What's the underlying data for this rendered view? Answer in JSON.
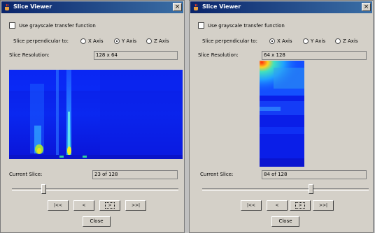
{
  "windows": [
    {
      "title": "Slice Viewer",
      "close_label": "×",
      "grayscale_label": "Use grayscale transfer function",
      "perpendicular_label": "Slice perpendicular to:",
      "axes": [
        "X Axis",
        "Y Axis",
        "Z Axis"
      ],
      "selected_axis": "Y Axis",
      "resolution_label": "Slice Resolution:",
      "resolution_value": "128 x 64",
      "current_slice_label": "Current Slice:",
      "current_slice_value": "23 of 128",
      "slider_fraction": 0.18,
      "nav_buttons": [
        "|<<",
        "<",
        ">",
        ">>|"
      ],
      "close_button": "Close"
    },
    {
      "title": "Slice Viewer",
      "close_label": "×",
      "grayscale_label": "Use grayscale transfer function",
      "perpendicular_label": "Slice perpendicular to:",
      "axes": [
        "X Axis",
        "Y Axis",
        "Z Axis"
      ],
      "selected_axis": "X Axis",
      "resolution_label": "Slice Resolution:",
      "resolution_value": "64 x 128",
      "current_slice_label": "Current Slice:",
      "current_slice_value": "84 of 128",
      "slider_fraction": 0.66,
      "nav_buttons": [
        "|<<",
        "<",
        ">",
        ">>|"
      ],
      "close_button": "Close"
    }
  ],
  "colors": {
    "title_bar": "#0a246a",
    "window_bg": "#d4d0c8",
    "slice_blue": "#0a14e6"
  }
}
